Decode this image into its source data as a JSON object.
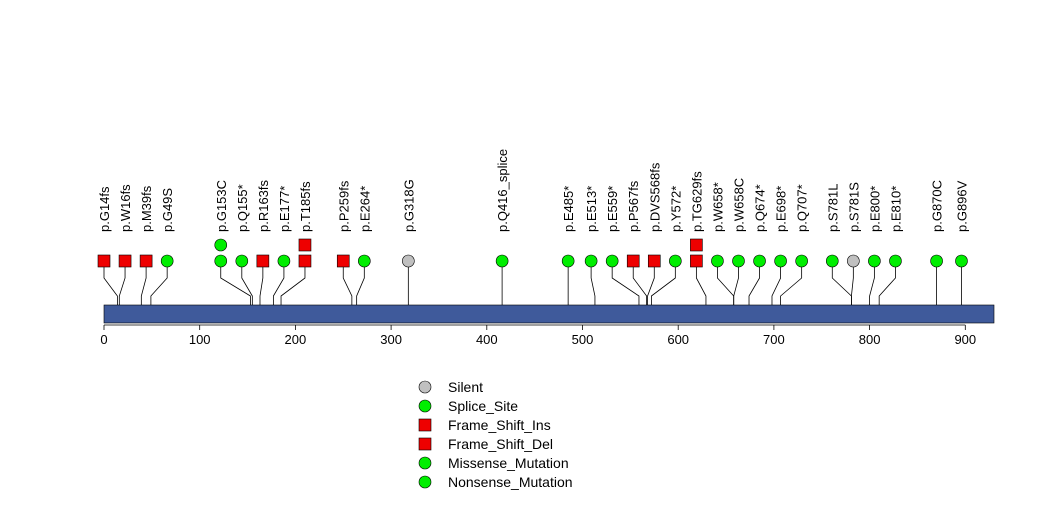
{
  "chart_data": {
    "type": "lollipop",
    "title": "",
    "xlabel": "",
    "ylabel": "",
    "xlim": [
      0,
      930
    ],
    "x_ticks": [
      0,
      100,
      200,
      300,
      400,
      500,
      600,
      700,
      800,
      900
    ],
    "domain_color": "#3f5a9b",
    "colors": {
      "Silent": "#c0c0c0",
      "Splice_Site": "#00ee00",
      "Frame_Shift_Ins": "#ee0000",
      "Frame_Shift_Del": "#ee0000",
      "Missense_Mutation": "#00ee00",
      "Nonsense_Mutation": "#00ee00"
    },
    "legend": [
      {
        "label": "Silent",
        "shape": "circle",
        "color": "#c0c0c0"
      },
      {
        "label": "Splice_Site",
        "shape": "circle",
        "color": "#00ee00"
      },
      {
        "label": "Frame_Shift_Ins",
        "shape": "square",
        "color": "#ee0000"
      },
      {
        "label": "Frame_Shift_Del",
        "shape": "square",
        "color": "#ee0000"
      },
      {
        "label": "Missense_Mutation",
        "shape": "circle",
        "color": "#00ee00"
      },
      {
        "label": "Nonsense_Mutation",
        "shape": "circle",
        "color": "#00ee00"
      }
    ],
    "mutations": [
      {
        "label": "p.G14fs",
        "pos": 14,
        "disp": 0,
        "markers": [
          {
            "shape": "square",
            "color": "#ee0000"
          }
        ]
      },
      {
        "label": "p.W16fs",
        "pos": 16,
        "disp": 22,
        "markers": [
          {
            "shape": "square",
            "color": "#ee0000"
          }
        ]
      },
      {
        "label": "p.M39fs",
        "pos": 39,
        "disp": 44,
        "markers": [
          {
            "shape": "square",
            "color": "#ee0000"
          }
        ]
      },
      {
        "label": "p.G49S",
        "pos": 49,
        "disp": 66,
        "markers": [
          {
            "shape": "circle",
            "color": "#00ee00"
          }
        ]
      },
      {
        "label": "p.G153C",
        "pos": 153,
        "disp": 122,
        "markers": [
          {
            "shape": "circle",
            "color": "#00ee00"
          },
          {
            "shape": "circle",
            "color": "#00ee00"
          }
        ]
      },
      {
        "label": "p.Q155*",
        "pos": 155,
        "disp": 144,
        "markers": [
          {
            "shape": "circle",
            "color": "#00ee00"
          }
        ]
      },
      {
        "label": "p.R163fs",
        "pos": 163,
        "disp": 166,
        "markers": [
          {
            "shape": "square",
            "color": "#ee0000"
          }
        ]
      },
      {
        "label": "p.E177*",
        "pos": 177,
        "disp": 188,
        "markers": [
          {
            "shape": "circle",
            "color": "#00ee00"
          }
        ]
      },
      {
        "label": "p.T185fs",
        "pos": 185,
        "disp": 210,
        "markers": [
          {
            "shape": "square",
            "color": "#ee0000"
          },
          {
            "shape": "square",
            "color": "#ee0000"
          }
        ]
      },
      {
        "label": "p.P259fs",
        "pos": 259,
        "disp": 250,
        "markers": [
          {
            "shape": "square",
            "color": "#ee0000"
          }
        ]
      },
      {
        "label": "p.E264*",
        "pos": 264,
        "disp": 272,
        "markers": [
          {
            "shape": "circle",
            "color": "#00ee00"
          }
        ]
      },
      {
        "label": "p.G318G",
        "pos": 318,
        "disp": 318,
        "markers": [
          {
            "shape": "circle",
            "color": "#c0c0c0"
          }
        ]
      },
      {
        "label": "p.Q416_splice",
        "pos": 416,
        "disp": 416,
        "markers": [
          {
            "shape": "circle",
            "color": "#00ee00"
          }
        ]
      },
      {
        "label": "p.E485*",
        "pos": 485,
        "disp": 485,
        "markers": [
          {
            "shape": "circle",
            "color": "#00ee00"
          }
        ]
      },
      {
        "label": "p.E513*",
        "pos": 513,
        "disp": 509,
        "markers": [
          {
            "shape": "circle",
            "color": "#00ee00"
          }
        ]
      },
      {
        "label": "p.E559*",
        "pos": 559,
        "disp": 531,
        "markers": [
          {
            "shape": "circle",
            "color": "#00ee00"
          }
        ]
      },
      {
        "label": "p.P567fs",
        "pos": 567,
        "disp": 553,
        "markers": [
          {
            "shape": "square",
            "color": "#ee0000"
          }
        ]
      },
      {
        "label": "p.DVS568fs",
        "pos": 568,
        "disp": 575,
        "markers": [
          {
            "shape": "square",
            "color": "#ee0000"
          }
        ]
      },
      {
        "label": "p.Y572*",
        "pos": 572,
        "disp": 597,
        "markers": [
          {
            "shape": "circle",
            "color": "#00ee00"
          }
        ]
      },
      {
        "label": "p.TG629fs",
        "pos": 629,
        "disp": 619,
        "markers": [
          {
            "shape": "square",
            "color": "#ee0000"
          },
          {
            "shape": "square",
            "color": "#ee0000"
          }
        ]
      },
      {
        "label": "p.W658*",
        "pos": 658,
        "disp": 641,
        "markers": [
          {
            "shape": "circle",
            "color": "#00ee00"
          }
        ]
      },
      {
        "label": "p.W658C",
        "pos": 658,
        "disp": 663,
        "markers": [
          {
            "shape": "circle",
            "color": "#00ee00"
          }
        ]
      },
      {
        "label": "p.Q674*",
        "pos": 674,
        "disp": 685,
        "markers": [
          {
            "shape": "circle",
            "color": "#00ee00"
          }
        ]
      },
      {
        "label": "p.E698*",
        "pos": 698,
        "disp": 707,
        "markers": [
          {
            "shape": "circle",
            "color": "#00ee00"
          }
        ]
      },
      {
        "label": "p.Q707*",
        "pos": 707,
        "disp": 729,
        "markers": [
          {
            "shape": "circle",
            "color": "#00ee00"
          }
        ]
      },
      {
        "label": "p.S781L",
        "pos": 781,
        "disp": 761,
        "markers": [
          {
            "shape": "circle",
            "color": "#00ee00"
          }
        ]
      },
      {
        "label": "p.S781S",
        "pos": 781,
        "disp": 783,
        "markers": [
          {
            "shape": "circle",
            "color": "#c0c0c0"
          }
        ]
      },
      {
        "label": "p.E800*",
        "pos": 800,
        "disp": 805,
        "markers": [
          {
            "shape": "circle",
            "color": "#00ee00"
          }
        ]
      },
      {
        "label": "p.E810*",
        "pos": 810,
        "disp": 827,
        "markers": [
          {
            "shape": "circle",
            "color": "#00ee00"
          }
        ]
      },
      {
        "label": "p.G870C",
        "pos": 870,
        "disp": 870,
        "markers": [
          {
            "shape": "circle",
            "color": "#00ee00"
          }
        ]
      },
      {
        "label": "p.G896V",
        "pos": 896,
        "disp": 896,
        "markers": [
          {
            "shape": "circle",
            "color": "#00ee00"
          }
        ]
      }
    ]
  }
}
